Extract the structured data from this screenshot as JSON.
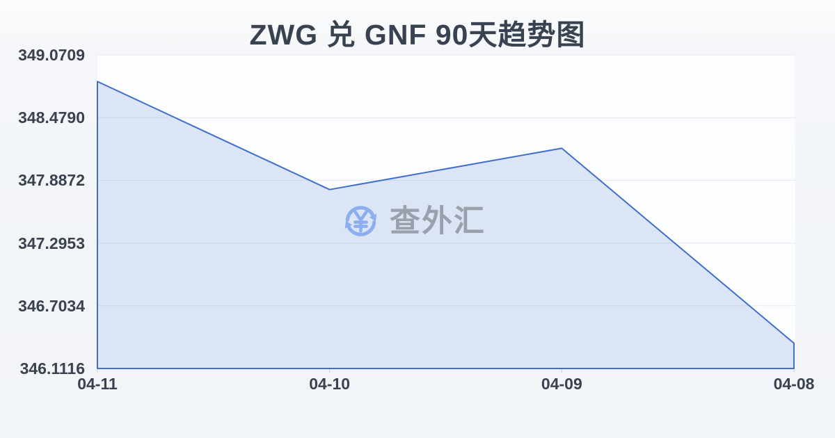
{
  "chart_data": {
    "type": "area",
    "title": "ZWG 兑 GNF 90天趋势图",
    "categories": [
      "04-11",
      "04-10",
      "04-09",
      "04-08"
    ],
    "values": [
      348.82,
      347.8,
      348.19,
      346.35
    ],
    "y_ticks": [
      "349.0709",
      "348.4790",
      "347.8872",
      "347.2953",
      "346.7034",
      "346.1116"
    ],
    "ylim": [
      346.1116,
      349.0709
    ],
    "xlabel": "",
    "ylabel": "",
    "grid": true,
    "legend": false
  },
  "watermark": {
    "brand": "查外汇",
    "icon": "currency-exchange-icon"
  },
  "colors": {
    "line": "#3f6ecb",
    "fill": "rgba(63, 110, 203, 0.17)",
    "grid": "#e4e8ee",
    "tick": "#ccd1d9",
    "plot_bg": "#fcfdff",
    "axis_text": "#39424e",
    "title_text": "#394250",
    "watermark_text": "#9aa1ac",
    "watermark_icon": "#8cadee"
  }
}
